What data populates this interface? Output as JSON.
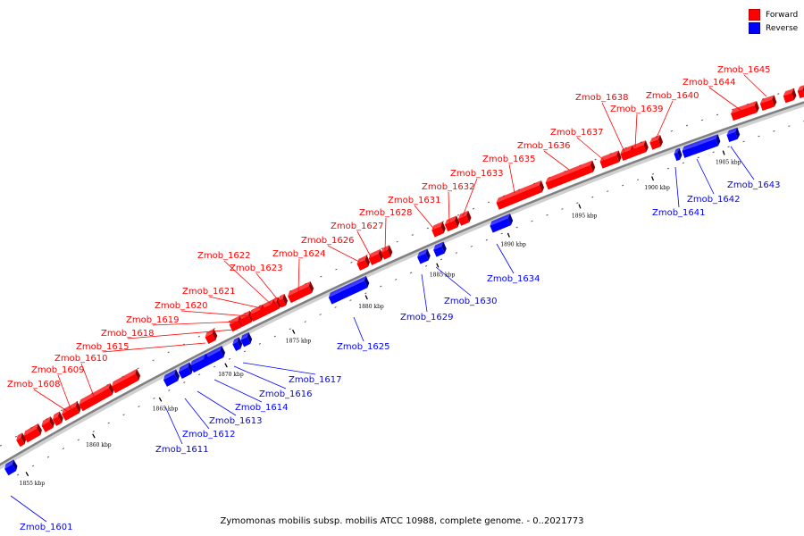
{
  "title": "Zymomonas mobilis subsp. mobilis ATCC 10988, complete genome. - 0..2021773",
  "legend": [
    {
      "label": "Forward",
      "color": "#ff0000"
    },
    {
      "label": "Reverse",
      "color": "#0000ff"
    }
  ],
  "colors": {
    "forward": "#ff0000",
    "reverse": "#0000ff",
    "axis": "#808080"
  },
  "ticks": [
    "1855 kbp",
    "1860 kbp",
    "1865 kbp",
    "1870 kbp",
    "1875 kbp",
    "1880 kbp",
    "1885 kbp",
    "1890 kbp",
    "1895 kbp",
    "1900 kbp",
    "1905 kbp"
  ],
  "forward_genes": [
    "Zmob_1608",
    "Zmob_1609",
    "Zmob_1610",
    "Zmob_1615",
    "Zmob_1618",
    "Zmob_1619",
    "Zmob_1620",
    "Zmob_1621",
    "Zmob_1622",
    "Zmob_1623",
    "Zmob_1624",
    "Zmob_1626",
    "Zmob_1627",
    "Zmob_1628",
    "Zmob_1631",
    "Zmob_1632",
    "Zmob_1633",
    "Zmob_1635",
    "Zmob_1636",
    "Zmob_1637",
    "Zmob_1638",
    "Zmob_1639",
    "Zmob_1640",
    "Zmob_1644",
    "Zmob_1645"
  ],
  "reverse_genes": [
    "Zmob_1601",
    "Zmob_1611",
    "Zmob_1612",
    "Zmob_1613",
    "Zmob_1614",
    "Zmob_1616",
    "Zmob_1617",
    "Zmob_1625",
    "Zmob_1629",
    "Zmob_1630",
    "Zmob_1634",
    "Zmob_1641",
    "Zmob_1642",
    "Zmob_1643"
  ]
}
